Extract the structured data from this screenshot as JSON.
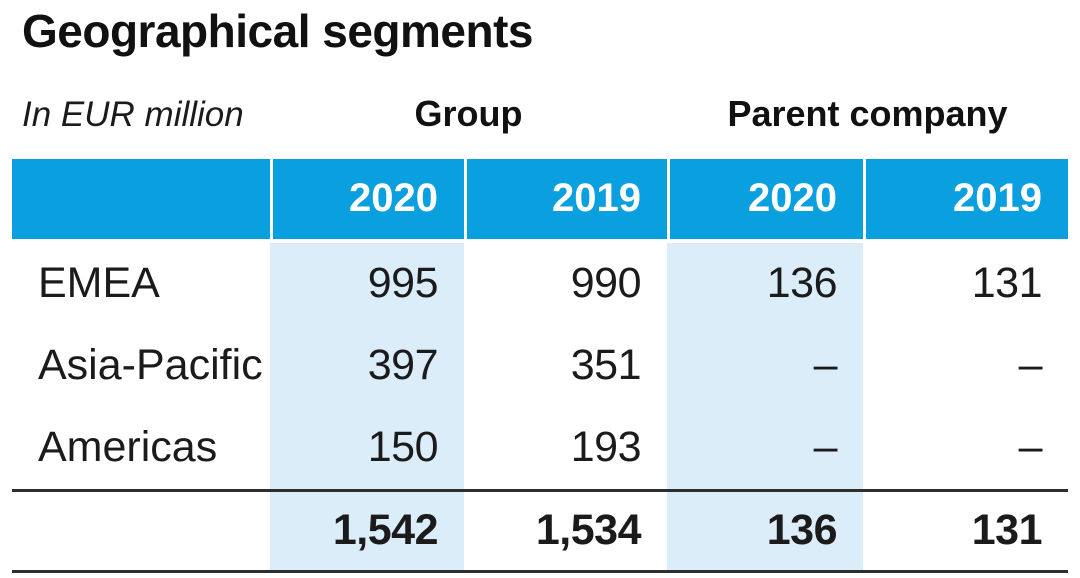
{
  "title": "Geographical segments",
  "unit_label": "In EUR million",
  "column_groups": [
    {
      "label": "Group"
    },
    {
      "label": "Parent company"
    }
  ],
  "year_headers": [
    "2020",
    "2019",
    "2020",
    "2019"
  ],
  "rows": [
    {
      "label": "EMEA",
      "values": [
        "995",
        "990",
        "136",
        "131"
      ]
    },
    {
      "label": "Asia-Pacific",
      "values": [
        "397",
        "351",
        "–",
        "–"
      ]
    },
    {
      "label": "Americas",
      "values": [
        "150",
        "193",
        "–",
        "–"
      ]
    }
  ],
  "total_row": {
    "values": [
      "1,542",
      "1,534",
      "136",
      "131"
    ]
  },
  "colors": {
    "header_blue": "#0aa0df",
    "highlight_blue": "#dcedfa",
    "rule_dark": "#2e2e2e",
    "text": "#1b1b1b",
    "header_text": "#ffffff"
  },
  "chart_data": {
    "type": "table",
    "title": "Geographical segments",
    "unit": "In EUR million",
    "column_groups": [
      "Group",
      "Parent company"
    ],
    "columns": [
      "Group 2020",
      "Group 2019",
      "Parent company 2020",
      "Parent company 2019"
    ],
    "rows": [
      {
        "label": "EMEA",
        "values": [
          995,
          990,
          136,
          131
        ]
      },
      {
        "label": "Asia-Pacific",
        "values": [
          397,
          351,
          null,
          null
        ]
      },
      {
        "label": "Americas",
        "values": [
          150,
          193,
          null,
          null
        ]
      }
    ],
    "totals": [
      1542,
      1534,
      136,
      131
    ],
    "highlighted_columns": [
      "Group 2020",
      "Parent company 2020"
    ],
    "layout_hints": {
      "header_background": "#0aa0df",
      "highlight_background": "#dcedfa",
      "total_row_bold": true,
      "rules_above_and_below_total": true
    }
  }
}
